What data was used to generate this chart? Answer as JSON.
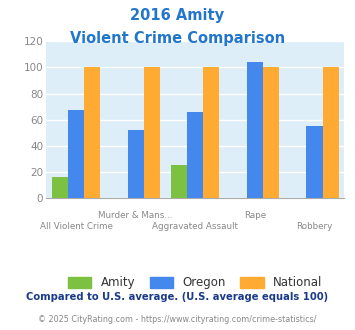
{
  "title_line1": "2016 Amity",
  "title_line2": "Violent Crime Comparison",
  "amity": [
    16,
    0,
    25,
    0,
    0
  ],
  "oregon": [
    67,
    52,
    66,
    104,
    55
  ],
  "national": [
    100,
    100,
    100,
    100,
    100
  ],
  "amity_color": "#7dc142",
  "oregon_color": "#4488ee",
  "national_color": "#ffaa33",
  "bg_color": "#ddeef8",
  "ylim": [
    0,
    120
  ],
  "yticks": [
    0,
    20,
    40,
    60,
    80,
    100,
    120
  ],
  "footnote": "Compared to U.S. average. (U.S. average equals 100)",
  "copyright": "© 2025 CityRating.com - https://www.cityrating.com/crime-statistics/",
  "title_color": "#2277cc",
  "footnote_color": "#1a3a8a",
  "copyright_color": "#888888",
  "tick_label_color": "#888888",
  "top_xlabels": [
    "",
    "Murder & Mans...",
    "",
    "Rape",
    ""
  ],
  "bottom_xlabels": [
    "All Violent Crime",
    "",
    "Aggravated Assault",
    "",
    "Robbery"
  ]
}
